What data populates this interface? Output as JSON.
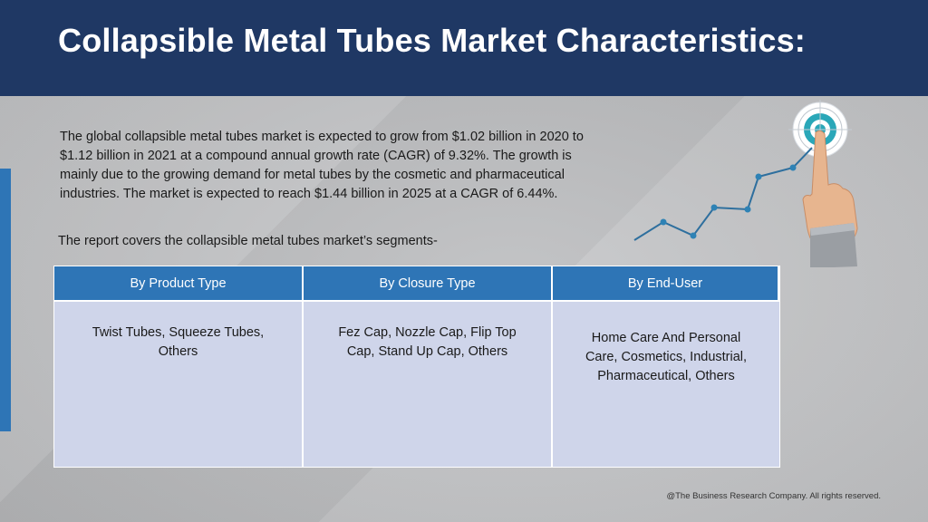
{
  "slide": {
    "title": "Collapsible Metal Tubes Market Characteristics:",
    "description": "The global collapsible metal tubes market is expected to grow from $1.02 billion in 2020 to $1.12 billion in 2021 at a compound annual growth rate (CAGR) of 9.32%. The growth is mainly due to the growing demand for metal tubes by the cosmetic and pharmaceutical industries. The market is expected to reach $1.44 billion in 2025 at a CAGR of 6.44%.",
    "segments_intro": "The report covers the collapsible metal tubes market’s segments-",
    "footer": "@The Business Research Company. All rights reserved."
  },
  "segments": {
    "headers": [
      "By Product Type",
      "By Closure Type",
      "By End-User"
    ],
    "values": [
      "Twist Tubes, Squeeze Tubes, Others",
      "Fez Cap, Nozzle Cap, Flip Top Cap, Stand Up Cap, Others",
      "Home Care And Personal Care, Cosmetics, Industrial, Pharmaceutical, Others"
    ]
  },
  "theme": {
    "header_bg": "#1f3864",
    "accent_blue": "#2e75b6",
    "cell_bg": "#cfd5ea"
  },
  "icons": [
    "growth-line-target-icon",
    "pointing-hand-icon"
  ]
}
